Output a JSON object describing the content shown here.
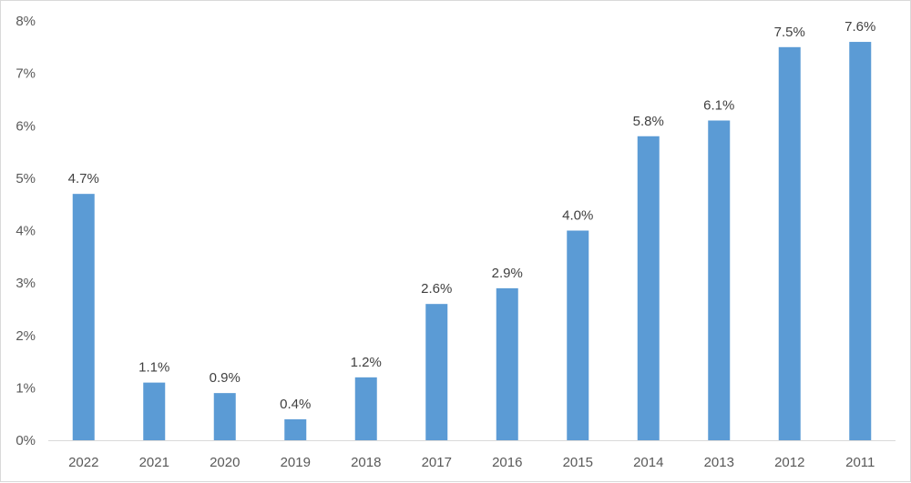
{
  "chart_data": {
    "type": "bar",
    "title": "",
    "xlabel": "",
    "ylabel": "",
    "categories": [
      "2022",
      "2021",
      "2020",
      "2019",
      "2018",
      "2017",
      "2016",
      "2015",
      "2014",
      "2013",
      "2012",
      "2011"
    ],
    "values": [
      4.7,
      1.1,
      0.9,
      0.4,
      1.2,
      2.6,
      2.9,
      4.0,
      5.8,
      6.1,
      7.5,
      7.6
    ],
    "data_labels": [
      "4.7%",
      "1.1%",
      "0.9%",
      "0.4%",
      "1.2%",
      "2.6%",
      "2.9%",
      "4.0%",
      "5.8%",
      "6.1%",
      "7.5%",
      "7.6%"
    ],
    "ylim": [
      0,
      8
    ],
    "yticks": [
      0,
      1,
      2,
      3,
      4,
      5,
      6,
      7,
      8
    ],
    "ytick_labels": [
      "0%",
      "1%",
      "2%",
      "3%",
      "4%",
      "5%",
      "6%",
      "7%",
      "8%"
    ],
    "grid": false,
    "legend": "none",
    "colors": {
      "bar": "#5b9bd5",
      "axis": "#d9d9d9"
    }
  }
}
